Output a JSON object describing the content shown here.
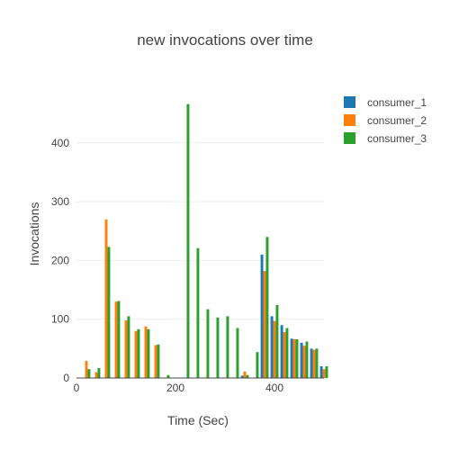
{
  "chart_data": {
    "type": "bar",
    "title": "new invocations over time",
    "xlabel": "Time (Sec)",
    "ylabel": "Invocations",
    "xlim": [
      0,
      500
    ],
    "ylim": [
      0,
      490
    ],
    "xticks": [
      0,
      200,
      400
    ],
    "yticks": [
      0,
      100,
      200,
      300,
      400
    ],
    "grid": "horizontal",
    "legend_position": "top-right",
    "x": [
      20,
      40,
      60,
      80,
      100,
      120,
      140,
      160,
      180,
      200,
      220,
      240,
      260,
      280,
      300,
      320,
      340,
      360,
      380,
      400,
      420,
      440,
      460,
      480,
      500
    ],
    "series": [
      {
        "name": "consumer_1",
        "color": "#1f77b4",
        "values": [
          0,
          0,
          0,
          0,
          0,
          0,
          0,
          0,
          0,
          0,
          0,
          0,
          0,
          0,
          0,
          0,
          4,
          0,
          210,
          105,
          90,
          67,
          60,
          50,
          20
        ]
      },
      {
        "name": "consumer_2",
        "color": "#ff7f0e",
        "values": [
          29,
          10,
          270,
          130,
          98,
          80,
          88,
          56,
          0,
          0,
          0,
          0,
          0,
          0,
          0,
          0,
          11,
          0,
          182,
          97,
          78,
          66,
          55,
          48,
          15
        ]
      },
      {
        "name": "consumer_3",
        "color": "#2ca02c",
        "values": [
          15,
          17,
          223,
          131,
          105,
          83,
          83,
          57,
          5,
          0,
          466,
          221,
          117,
          103,
          105,
          85,
          5,
          44,
          240,
          124,
          85,
          66,
          62,
          50,
          20
        ]
      }
    ]
  }
}
